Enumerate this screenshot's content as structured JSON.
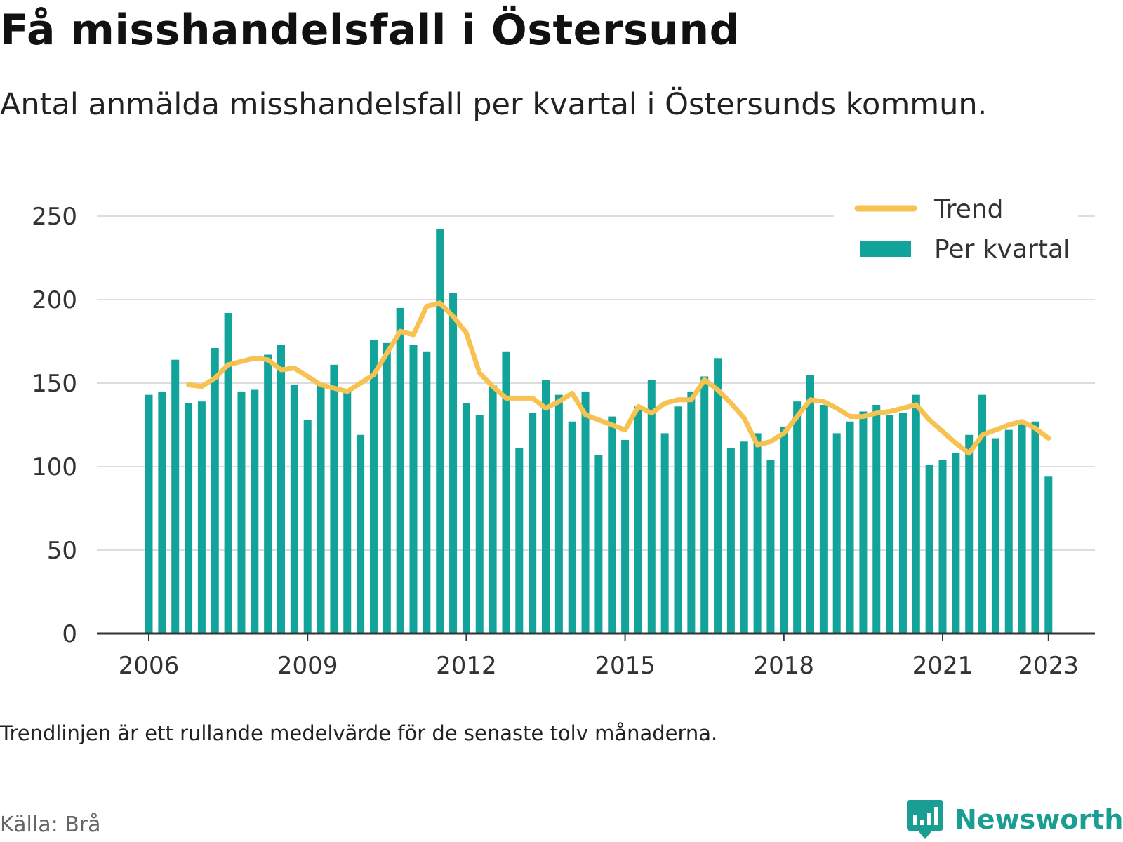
{
  "title": "Få misshandelsfall i Östersund",
  "subtitle": "Antal anmälda misshandelsfall per kvartal i Östersunds kommun.",
  "note": "Trendlinjen är ett rullande medelvärde för de senaste tolv månaderna.",
  "source": "Källa: Brå",
  "brand": {
    "name": "Newsworthy",
    "icon": "newsworthy-logo-icon"
  },
  "colors": {
    "bar": "#12a39a",
    "trend": "#f7c251",
    "grid": "#dddddd",
    "axis": "#333333",
    "text": "#333333"
  },
  "legend": {
    "trend_label": "Trend",
    "bar_label": "Per kvartal",
    "position": "top-right"
  },
  "chart_data": {
    "type": "bar",
    "ylim": [
      0,
      250
    ],
    "yticks": [
      0,
      50,
      100,
      150,
      200,
      250
    ],
    "xlim": [
      "2006-Q1",
      "2023-Q1"
    ],
    "xticks": [
      "2006",
      "2009",
      "2012",
      "2015",
      "2018",
      "2021",
      "2023"
    ],
    "grid": true,
    "categories": [
      "2006-Q1",
      "2006-Q2",
      "2006-Q3",
      "2006-Q4",
      "2007-Q1",
      "2007-Q2",
      "2007-Q3",
      "2007-Q4",
      "2008-Q1",
      "2008-Q2",
      "2008-Q3",
      "2008-Q4",
      "2009-Q1",
      "2009-Q2",
      "2009-Q3",
      "2009-Q4",
      "2010-Q1",
      "2010-Q2",
      "2010-Q3",
      "2010-Q4",
      "2011-Q1",
      "2011-Q2",
      "2011-Q3",
      "2011-Q4",
      "2012-Q1",
      "2012-Q2",
      "2012-Q3",
      "2012-Q4",
      "2013-Q1",
      "2013-Q2",
      "2013-Q3",
      "2013-Q4",
      "2014-Q1",
      "2014-Q2",
      "2014-Q3",
      "2014-Q4",
      "2015-Q1",
      "2015-Q2",
      "2015-Q3",
      "2015-Q4",
      "2016-Q1",
      "2016-Q2",
      "2016-Q3",
      "2016-Q4",
      "2017-Q1",
      "2017-Q2",
      "2017-Q3",
      "2017-Q4",
      "2018-Q1",
      "2018-Q2",
      "2018-Q3",
      "2018-Q4",
      "2019-Q1",
      "2019-Q2",
      "2019-Q3",
      "2019-Q4",
      "2020-Q1",
      "2020-Q2",
      "2020-Q3",
      "2020-Q4",
      "2021-Q1",
      "2021-Q2",
      "2021-Q3",
      "2021-Q4",
      "2022-Q1",
      "2022-Q2",
      "2022-Q3",
      "2022-Q4",
      "2023-Q1"
    ],
    "series": [
      {
        "name": "Per kvartal",
        "type": "bar",
        "values": [
          143,
          145,
          164,
          138,
          139,
          171,
          192,
          145,
          146,
          167,
          173,
          149,
          128,
          150,
          161,
          146,
          119,
          176,
          174,
          195,
          173,
          169,
          242,
          204,
          138,
          131,
          149,
          169,
          111,
          132,
          152,
          143,
          127,
          145,
          107,
          130,
          116,
          136,
          152,
          120,
          136,
          145,
          154,
          165,
          111,
          115,
          120,
          104,
          124,
          139,
          155,
          137,
          120,
          127,
          133,
          137,
          131,
          132,
          143,
          101,
          104,
          108,
          119,
          143,
          117,
          122,
          126,
          127,
          94
        ]
      },
      {
        "name": "Trend",
        "type": "line",
        "values": [
          null,
          null,
          null,
          149,
          148,
          153,
          161,
          163,
          165,
          164,
          158,
          159,
          154,
          149,
          147,
          145,
          150,
          155,
          168,
          181,
          179,
          196,
          198,
          190,
          180,
          156,
          148,
          141,
          141,
          141,
          135,
          139,
          144,
          131,
          128,
          125,
          122,
          136,
          132,
          138,
          140,
          140,
          152,
          146,
          138,
          129,
          113,
          115,
          120,
          130,
          140,
          139,
          135,
          130,
          130,
          132,
          133,
          135,
          137,
          128,
          121,
          114,
          108,
          119,
          122,
          125,
          127,
          123,
          117
        ]
      }
    ]
  }
}
